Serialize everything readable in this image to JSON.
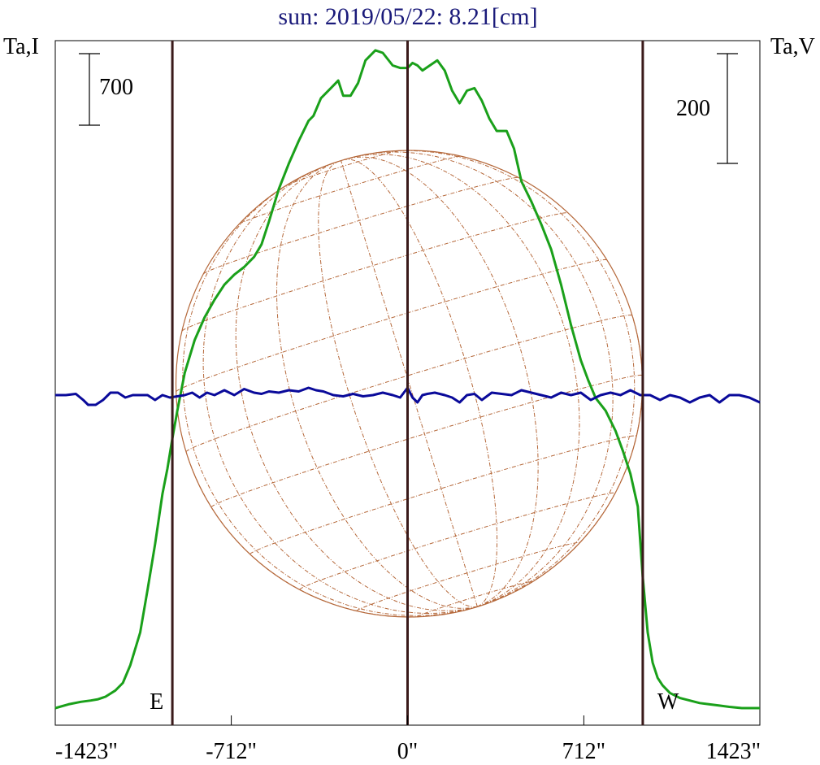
{
  "chart_data": {
    "type": "line",
    "title": "sun: 2019/05/22: 8.21[cm]",
    "left_axis_label": "Ta,I",
    "right_axis_label": "Ta,V",
    "scale_bars": {
      "left": "700",
      "right": "200"
    },
    "x_ticks": [
      "-1423\"",
      "-712\"",
      "0\"",
      "712\"",
      "1423\""
    ],
    "x_tick_values": [
      -1423,
      -712,
      0,
      712,
      1423
    ],
    "xlim": [
      -1423,
      1423
    ],
    "markers": [
      {
        "label": "E",
        "x": -950
      },
      {
        "label": "",
        "x": 0
      },
      {
        "label": "W",
        "x": 950
      }
    ],
    "colors": {
      "title": "#1a1a7a",
      "intensity": "#1aa01a",
      "polarization": "#0a0a9a",
      "limb_lines": "#3a1a1a",
      "disk": "#b5683a"
    },
    "series": [
      {
        "color": "#1aa01a",
        "x": [
          -1423,
          -1370,
          -1320,
          -1280,
          -1250,
          -1220,
          -1180,
          -1150,
          -1120,
          -1080,
          -1050,
          -1020,
          -990,
          -970,
          -950,
          -930,
          -900,
          -860,
          -820,
          -780,
          -740,
          -700,
          -660,
          -620,
          -590,
          -560,
          -520,
          -480,
          -440,
          -400,
          -380,
          -350,
          -310,
          -280,
          -260,
          -230,
          -200,
          -170,
          -130,
          -100,
          -60,
          -30,
          0,
          20,
          40,
          60,
          90,
          120,
          150,
          180,
          210,
          240,
          270,
          300,
          330,
          360,
          400,
          430,
          460,
          500,
          540,
          580,
          620,
          660,
          700,
          730,
          760,
          800,
          840,
          870,
          900,
          930,
          950,
          970,
          990,
          1010,
          1030,
          1060,
          1100,
          1140,
          1180,
          1220,
          1260,
          1300,
          1350,
          1423
        ],
        "y": [
          0.0,
          0.015,
          0.025,
          0.03,
          0.035,
          0.045,
          0.07,
          0.1,
          0.17,
          0.3,
          0.47,
          0.65,
          0.85,
          0.95,
          1.07,
          1.18,
          1.33,
          1.46,
          1.55,
          1.62,
          1.68,
          1.72,
          1.75,
          1.79,
          1.84,
          1.93,
          2.06,
          2.16,
          2.25,
          2.33,
          2.35,
          2.42,
          2.46,
          2.49,
          2.43,
          2.43,
          2.48,
          2.57,
          2.61,
          2.6,
          2.55,
          2.54,
          2.54,
          2.56,
          2.55,
          2.53,
          2.55,
          2.57,
          2.53,
          2.45,
          2.4,
          2.45,
          2.46,
          2.41,
          2.34,
          2.29,
          2.29,
          2.22,
          2.09,
          2.01,
          1.92,
          1.82,
          1.68,
          1.52,
          1.38,
          1.3,
          1.23,
          1.18,
          1.1,
          1.02,
          0.93,
          0.8,
          0.52,
          0.3,
          0.18,
          0.12,
          0.09,
          0.06,
          0.04,
          0.03,
          0.02,
          0.015,
          0.01,
          0.005,
          0.0,
          0.0
        ]
      },
      {
        "color": "#0a0a9a",
        "x": [
          -1423,
          -1380,
          -1340,
          -1310,
          -1290,
          -1260,
          -1230,
          -1200,
          -1170,
          -1140,
          -1110,
          -1080,
          -1050,
          -1020,
          -990,
          -960,
          -930,
          -900,
          -870,
          -840,
          -810,
          -780,
          -740,
          -700,
          -660,
          -620,
          -590,
          -560,
          -520,
          -480,
          -440,
          -400,
          -370,
          -340,
          -300,
          -260,
          -220,
          -180,
          -140,
          -100,
          -60,
          -30,
          0,
          20,
          40,
          60,
          80,
          110,
          150,
          180,
          210,
          240,
          270,
          300,
          340,
          380,
          420,
          460,
          500,
          540,
          580,
          620,
          660,
          700,
          740,
          780,
          820,
          860,
          900,
          940,
          980,
          1020,
          1060,
          1100,
          1140,
          1180,
          1220,
          1260,
          1300,
          1340,
          1380,
          1423
        ],
        "y": [
          0.0,
          0.0,
          0.005,
          -0.02,
          -0.04,
          -0.04,
          -0.02,
          0.01,
          0.01,
          -0.01,
          0.0,
          0.0,
          0.0,
          -0.02,
          0.0,
          -0.01,
          -0.005,
          0.0,
          0.01,
          -0.01,
          0.01,
          0.0,
          0.02,
          0.0,
          0.025,
          0.01,
          0.005,
          0.015,
          0.01,
          0.02,
          0.015,
          0.03,
          0.02,
          0.015,
          0.0,
          -0.005,
          0.005,
          -0.005,
          0.0,
          0.01,
          0.0,
          -0.01,
          0.03,
          -0.01,
          -0.03,
          0.0,
          0.005,
          0.01,
          0.0,
          -0.01,
          -0.03,
          0.0,
          0.005,
          -0.02,
          0.01,
          0.005,
          0.0,
          0.02,
          0.01,
          0.0,
          -0.01,
          0.01,
          0.0,
          0.01,
          -0.02,
          0.0,
          0.01,
          0.0,
          0.02,
          0.0,
          0.0,
          -0.02,
          0.0,
          -0.01,
          -0.03,
          -0.01,
          0.0,
          -0.03,
          0.0,
          0.0,
          -0.01,
          -0.03
        ]
      }
    ]
  }
}
